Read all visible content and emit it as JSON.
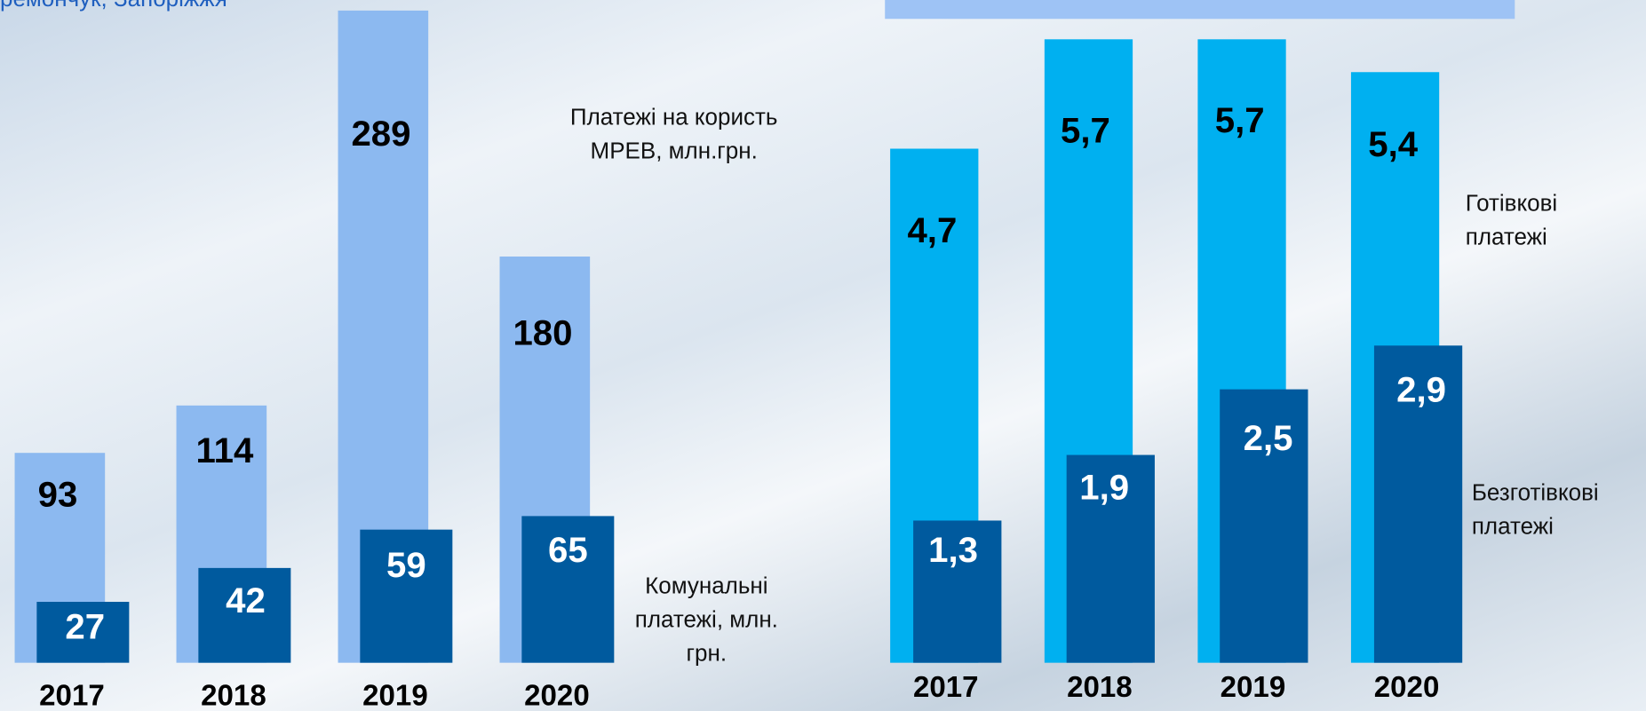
{
  "header": {
    "caption": "ремончук, Запоріжжя"
  },
  "chart_data": [
    {
      "type": "bar",
      "categories": [
        "2017",
        "2018",
        "2019",
        "2020"
      ],
      "series": [
        {
          "name": "Платежі на користь МРЕВ, млн.грн.",
          "color": "#8cb9f0",
          "values": [
            93,
            114,
            289,
            180
          ]
        },
        {
          "name": "Комунальні платежі, млн. грн.",
          "color": "#005a9e",
          "values": [
            27,
            42,
            59,
            65
          ]
        }
      ]
    },
    {
      "type": "bar",
      "categories": [
        "2017",
        "2018",
        "2019",
        "2020"
      ],
      "series": [
        {
          "name": "Готівкові платежі",
          "color": "#00b0f0",
          "values": [
            4.7,
            5.7,
            5.7,
            5.4
          ],
          "value_labels": [
            "4,7",
            "5,7",
            "5,7",
            "5,4"
          ]
        },
        {
          "name": "Безготівкові платежі",
          "color": "#005a9e",
          "values": [
            1.3,
            1.9,
            2.5,
            2.9
          ],
          "value_labels": [
            "1,3",
            "1,9",
            "2,5",
            "2,9"
          ]
        }
      ]
    }
  ]
}
